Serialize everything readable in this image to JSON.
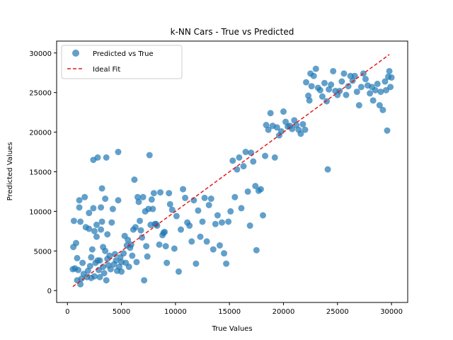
{
  "chart_data": {
    "type": "scatter",
    "title": "k-NN Cars - True vs Predicted",
    "xlabel": "True Values",
    "ylabel": "Predicted Values",
    "xlim": [
      -1000,
      31500
    ],
    "ylim": [
      -1500,
      31500
    ],
    "xticks": [
      0,
      5000,
      10000,
      15000,
      20000,
      25000,
      30000
    ],
    "yticks": [
      0,
      5000,
      10000,
      15000,
      20000,
      25000,
      30000
    ],
    "grid": false,
    "legend_placement": "top-left",
    "series": [
      {
        "name": "Predicted vs True",
        "color": "#1f77b4",
        "points": [
          [
            500,
            2700
          ],
          [
            550,
            5500
          ],
          [
            600,
            8800
          ],
          [
            700,
            2800
          ],
          [
            800,
            6000
          ],
          [
            900,
            1300
          ],
          [
            900,
            4100
          ],
          [
            1000,
            2600
          ],
          [
            1100,
            10500
          ],
          [
            1100,
            11400
          ],
          [
            1200,
            800
          ],
          [
            1200,
            8700
          ],
          [
            1300,
            1500
          ],
          [
            1400,
            3500
          ],
          [
            1500,
            2100
          ],
          [
            1600,
            11800
          ],
          [
            1700,
            8000
          ],
          [
            1800,
            1700
          ],
          [
            1900,
            2500
          ],
          [
            2000,
            7800
          ],
          [
            2000,
            9800
          ],
          [
            2100,
            3100
          ],
          [
            2200,
            4200
          ],
          [
            2200,
            1600
          ],
          [
            2300,
            5200
          ],
          [
            2400,
            10400
          ],
          [
            2400,
            16500
          ],
          [
            2500,
            7500
          ],
          [
            2500,
            1800
          ],
          [
            2600,
            3500
          ],
          [
            2700,
            6800
          ],
          [
            2700,
            8300
          ],
          [
            2800,
            3800
          ],
          [
            2800,
            16800
          ],
          [
            2900,
            2600
          ],
          [
            3000,
            1700
          ],
          [
            3000,
            3800
          ],
          [
            3100,
            10500
          ],
          [
            3100,
            7700
          ],
          [
            3200,
            12900
          ],
          [
            3200,
            8700
          ],
          [
            3300,
            5500
          ],
          [
            3300,
            3000
          ],
          [
            3400,
            2200
          ],
          [
            3500,
            11600
          ],
          [
            3500,
            5000
          ],
          [
            3600,
            16800
          ],
          [
            3600,
            1300
          ],
          [
            3700,
            4000
          ],
          [
            3700,
            7100
          ],
          [
            3800,
            3200
          ],
          [
            3900,
            4400
          ],
          [
            4000,
            2700
          ],
          [
            4100,
            8600
          ],
          [
            4200,
            10300
          ],
          [
            4300,
            3300
          ],
          [
            4400,
            4600
          ],
          [
            4500,
            3800
          ],
          [
            4600,
            2500
          ],
          [
            4700,
            17500
          ],
          [
            4700,
            11400
          ],
          [
            4800,
            3000
          ],
          [
            4900,
            4200
          ],
          [
            5000,
            3600
          ],
          [
            5000,
            2400
          ],
          [
            5200,
            4700
          ],
          [
            5300,
            6900
          ],
          [
            5400,
            3500
          ],
          [
            5500,
            5700
          ],
          [
            5600,
            6400
          ],
          [
            5700,
            3000
          ],
          [
            5800,
            5400
          ],
          [
            5900,
            5800
          ],
          [
            6000,
            4400
          ],
          [
            6100,
            7700
          ],
          [
            6200,
            14000
          ],
          [
            6300,
            8000
          ],
          [
            6400,
            3600
          ],
          [
            6500,
            11800
          ],
          [
            6600,
            11200
          ],
          [
            6700,
            8800
          ],
          [
            6800,
            7600
          ],
          [
            6900,
            6700
          ],
          [
            7000,
            11800
          ],
          [
            7100,
            1300
          ],
          [
            7200,
            10000
          ],
          [
            7300,
            5600
          ],
          [
            7400,
            4300
          ],
          [
            7500,
            10300
          ],
          [
            7600,
            17100
          ],
          [
            7700,
            8300
          ],
          [
            7800,
            11500
          ],
          [
            7900,
            10300
          ],
          [
            8000,
            12300
          ],
          [
            8100,
            8400
          ],
          [
            8200,
            8400
          ],
          [
            8300,
            8200
          ],
          [
            8500,
            5800
          ],
          [
            8600,
            12400
          ],
          [
            8800,
            7000
          ],
          [
            8900,
            7300
          ],
          [
            9000,
            7400
          ],
          [
            9100,
            5600
          ],
          [
            9200,
            3500
          ],
          [
            9400,
            12300
          ],
          [
            9500,
            10900
          ],
          [
            9700,
            10200
          ],
          [
            9900,
            5300
          ],
          [
            10100,
            9400
          ],
          [
            10300,
            2400
          ],
          [
            10500,
            7700
          ],
          [
            10700,
            12800
          ],
          [
            10900,
            11700
          ],
          [
            11100,
            8600
          ],
          [
            11300,
            8200
          ],
          [
            11500,
            6200
          ],
          [
            11700,
            11400
          ],
          [
            11900,
            3400
          ],
          [
            12100,
            10100
          ],
          [
            12300,
            6800
          ],
          [
            12500,
            8700
          ],
          [
            12700,
            11700
          ],
          [
            12900,
            6200
          ],
          [
            13100,
            10800
          ],
          [
            13300,
            11600
          ],
          [
            13500,
            5200
          ],
          [
            13700,
            8400
          ],
          [
            13900,
            9500
          ],
          [
            14100,
            5700
          ],
          [
            14300,
            8600
          ],
          [
            14500,
            4700
          ],
          [
            14700,
            3400
          ],
          [
            14900,
            8700
          ],
          [
            15100,
            10000
          ],
          [
            15300,
            16400
          ],
          [
            15500,
            11800
          ],
          [
            15700,
            15300
          ],
          [
            15900,
            16800
          ],
          [
            16100,
            10400
          ],
          [
            16300,
            15700
          ],
          [
            16500,
            17500
          ],
          [
            16700,
            12500
          ],
          [
            16900,
            8200
          ],
          [
            17000,
            17400
          ],
          [
            17200,
            16300
          ],
          [
            17400,
            13200
          ],
          [
            17500,
            5100
          ],
          [
            17700,
            12600
          ],
          [
            17900,
            12800
          ],
          [
            18100,
            9500
          ],
          [
            18300,
            17000
          ],
          [
            18400,
            20900
          ],
          [
            18600,
            20300
          ],
          [
            18800,
            22400
          ],
          [
            19000,
            20800
          ],
          [
            19200,
            16800
          ],
          [
            19400,
            20600
          ],
          [
            19600,
            19600
          ],
          [
            19800,
            20100
          ],
          [
            20000,
            22600
          ],
          [
            20200,
            21300
          ],
          [
            20400,
            20700
          ],
          [
            20600,
            20800
          ],
          [
            20800,
            20400
          ],
          [
            21000,
            21500
          ],
          [
            21200,
            20900
          ],
          [
            21400,
            20300
          ],
          [
            21600,
            19800
          ],
          [
            21800,
            21000
          ],
          [
            22000,
            20300
          ],
          [
            22100,
            26300
          ],
          [
            22300,
            24600
          ],
          [
            22400,
            24000
          ],
          [
            22500,
            27400
          ],
          [
            22600,
            25800
          ],
          [
            22800,
            27100
          ],
          [
            23000,
            28000
          ],
          [
            23200,
            25600
          ],
          [
            23400,
            25300
          ],
          [
            23600,
            24500
          ],
          [
            23800,
            26200
          ],
          [
            24000,
            23900
          ],
          [
            24100,
            15300
          ],
          [
            24200,
            25400
          ],
          [
            24400,
            26000
          ],
          [
            24600,
            27700
          ],
          [
            24800,
            25200
          ],
          [
            25000,
            24700
          ],
          [
            25200,
            25200
          ],
          [
            25400,
            26400
          ],
          [
            25600,
            27400
          ],
          [
            25800,
            24700
          ],
          [
            26000,
            25800
          ],
          [
            26200,
            27100
          ],
          [
            26400,
            26500
          ],
          [
            26600,
            27100
          ],
          [
            26800,
            25100
          ],
          [
            27000,
            23400
          ],
          [
            27200,
            25700
          ],
          [
            27400,
            27400
          ],
          [
            27600,
            26700
          ],
          [
            27800,
            25900
          ],
          [
            28000,
            24900
          ],
          [
            28200,
            25700
          ],
          [
            28300,
            24000
          ],
          [
            28500,
            25300
          ],
          [
            28700,
            26100
          ],
          [
            28900,
            23400
          ],
          [
            29000,
            25100
          ],
          [
            29200,
            22800
          ],
          [
            29400,
            26400
          ],
          [
            29500,
            25300
          ],
          [
            29600,
            20200
          ],
          [
            29700,
            27000
          ],
          [
            29800,
            27700
          ],
          [
            29900,
            25700
          ],
          [
            30000,
            26900
          ]
        ]
      },
      {
        "name": "Ideal Fit",
        "color": "#e31a1c",
        "line": [
          [
            500,
            500
          ],
          [
            29800,
            29800
          ]
        ]
      }
    ]
  }
}
